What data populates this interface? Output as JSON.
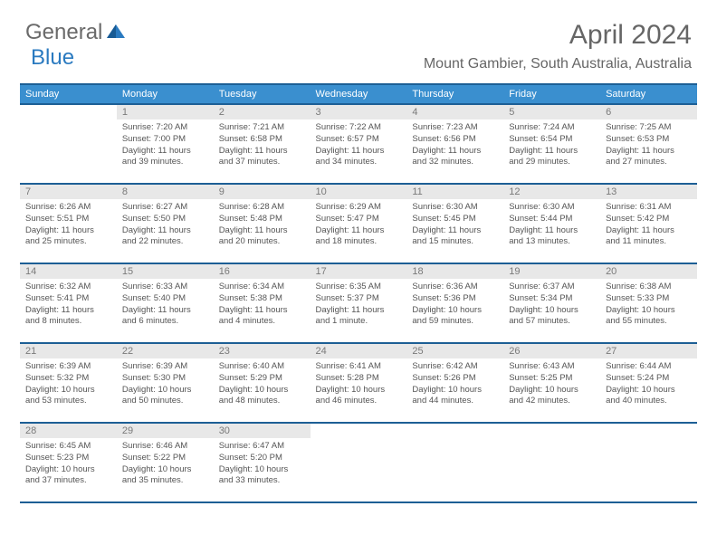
{
  "logo": {
    "text1": "General",
    "text2": "Blue",
    "icon_color": "#2a7ac0"
  },
  "title": "April 2024",
  "location": "Mount Gambier, South Australia, Australia",
  "colors": {
    "header_bg": "#3a8fcf",
    "header_border": "#1d5f95",
    "daynum_bg": "#e8e8e8",
    "text": "#555"
  },
  "weekdays": [
    "Sunday",
    "Monday",
    "Tuesday",
    "Wednesday",
    "Thursday",
    "Friday",
    "Saturday"
  ],
  "weeks": [
    [
      {
        "empty": true
      },
      {
        "n": "1",
        "sr": "Sunrise: 7:20 AM",
        "ss": "Sunset: 7:00 PM",
        "d1": "Daylight: 11 hours",
        "d2": "and 39 minutes."
      },
      {
        "n": "2",
        "sr": "Sunrise: 7:21 AM",
        "ss": "Sunset: 6:58 PM",
        "d1": "Daylight: 11 hours",
        "d2": "and 37 minutes."
      },
      {
        "n": "3",
        "sr": "Sunrise: 7:22 AM",
        "ss": "Sunset: 6:57 PM",
        "d1": "Daylight: 11 hours",
        "d2": "and 34 minutes."
      },
      {
        "n": "4",
        "sr": "Sunrise: 7:23 AM",
        "ss": "Sunset: 6:56 PM",
        "d1": "Daylight: 11 hours",
        "d2": "and 32 minutes."
      },
      {
        "n": "5",
        "sr": "Sunrise: 7:24 AM",
        "ss": "Sunset: 6:54 PM",
        "d1": "Daylight: 11 hours",
        "d2": "and 29 minutes."
      },
      {
        "n": "6",
        "sr": "Sunrise: 7:25 AM",
        "ss": "Sunset: 6:53 PM",
        "d1": "Daylight: 11 hours",
        "d2": "and 27 minutes."
      }
    ],
    [
      {
        "n": "7",
        "sr": "Sunrise: 6:26 AM",
        "ss": "Sunset: 5:51 PM",
        "d1": "Daylight: 11 hours",
        "d2": "and 25 minutes."
      },
      {
        "n": "8",
        "sr": "Sunrise: 6:27 AM",
        "ss": "Sunset: 5:50 PM",
        "d1": "Daylight: 11 hours",
        "d2": "and 22 minutes."
      },
      {
        "n": "9",
        "sr": "Sunrise: 6:28 AM",
        "ss": "Sunset: 5:48 PM",
        "d1": "Daylight: 11 hours",
        "d2": "and 20 minutes."
      },
      {
        "n": "10",
        "sr": "Sunrise: 6:29 AM",
        "ss": "Sunset: 5:47 PM",
        "d1": "Daylight: 11 hours",
        "d2": "and 18 minutes."
      },
      {
        "n": "11",
        "sr": "Sunrise: 6:30 AM",
        "ss": "Sunset: 5:45 PM",
        "d1": "Daylight: 11 hours",
        "d2": "and 15 minutes."
      },
      {
        "n": "12",
        "sr": "Sunrise: 6:30 AM",
        "ss": "Sunset: 5:44 PM",
        "d1": "Daylight: 11 hours",
        "d2": "and 13 minutes."
      },
      {
        "n": "13",
        "sr": "Sunrise: 6:31 AM",
        "ss": "Sunset: 5:42 PM",
        "d1": "Daylight: 11 hours",
        "d2": "and 11 minutes."
      }
    ],
    [
      {
        "n": "14",
        "sr": "Sunrise: 6:32 AM",
        "ss": "Sunset: 5:41 PM",
        "d1": "Daylight: 11 hours",
        "d2": "and 8 minutes."
      },
      {
        "n": "15",
        "sr": "Sunrise: 6:33 AM",
        "ss": "Sunset: 5:40 PM",
        "d1": "Daylight: 11 hours",
        "d2": "and 6 minutes."
      },
      {
        "n": "16",
        "sr": "Sunrise: 6:34 AM",
        "ss": "Sunset: 5:38 PM",
        "d1": "Daylight: 11 hours",
        "d2": "and 4 minutes."
      },
      {
        "n": "17",
        "sr": "Sunrise: 6:35 AM",
        "ss": "Sunset: 5:37 PM",
        "d1": "Daylight: 11 hours",
        "d2": "and 1 minute."
      },
      {
        "n": "18",
        "sr": "Sunrise: 6:36 AM",
        "ss": "Sunset: 5:36 PM",
        "d1": "Daylight: 10 hours",
        "d2": "and 59 minutes."
      },
      {
        "n": "19",
        "sr": "Sunrise: 6:37 AM",
        "ss": "Sunset: 5:34 PM",
        "d1": "Daylight: 10 hours",
        "d2": "and 57 minutes."
      },
      {
        "n": "20",
        "sr": "Sunrise: 6:38 AM",
        "ss": "Sunset: 5:33 PM",
        "d1": "Daylight: 10 hours",
        "d2": "and 55 minutes."
      }
    ],
    [
      {
        "n": "21",
        "sr": "Sunrise: 6:39 AM",
        "ss": "Sunset: 5:32 PM",
        "d1": "Daylight: 10 hours",
        "d2": "and 53 minutes."
      },
      {
        "n": "22",
        "sr": "Sunrise: 6:39 AM",
        "ss": "Sunset: 5:30 PM",
        "d1": "Daylight: 10 hours",
        "d2": "and 50 minutes."
      },
      {
        "n": "23",
        "sr": "Sunrise: 6:40 AM",
        "ss": "Sunset: 5:29 PM",
        "d1": "Daylight: 10 hours",
        "d2": "and 48 minutes."
      },
      {
        "n": "24",
        "sr": "Sunrise: 6:41 AM",
        "ss": "Sunset: 5:28 PM",
        "d1": "Daylight: 10 hours",
        "d2": "and 46 minutes."
      },
      {
        "n": "25",
        "sr": "Sunrise: 6:42 AM",
        "ss": "Sunset: 5:26 PM",
        "d1": "Daylight: 10 hours",
        "d2": "and 44 minutes."
      },
      {
        "n": "26",
        "sr": "Sunrise: 6:43 AM",
        "ss": "Sunset: 5:25 PM",
        "d1": "Daylight: 10 hours",
        "d2": "and 42 minutes."
      },
      {
        "n": "27",
        "sr": "Sunrise: 6:44 AM",
        "ss": "Sunset: 5:24 PM",
        "d1": "Daylight: 10 hours",
        "d2": "and 40 minutes."
      }
    ],
    [
      {
        "n": "28",
        "sr": "Sunrise: 6:45 AM",
        "ss": "Sunset: 5:23 PM",
        "d1": "Daylight: 10 hours",
        "d2": "and 37 minutes."
      },
      {
        "n": "29",
        "sr": "Sunrise: 6:46 AM",
        "ss": "Sunset: 5:22 PM",
        "d1": "Daylight: 10 hours",
        "d2": "and 35 minutes."
      },
      {
        "n": "30",
        "sr": "Sunrise: 6:47 AM",
        "ss": "Sunset: 5:20 PM",
        "d1": "Daylight: 10 hours",
        "d2": "and 33 minutes."
      },
      {
        "empty": true
      },
      {
        "empty": true
      },
      {
        "empty": true
      },
      {
        "empty": true
      }
    ]
  ]
}
